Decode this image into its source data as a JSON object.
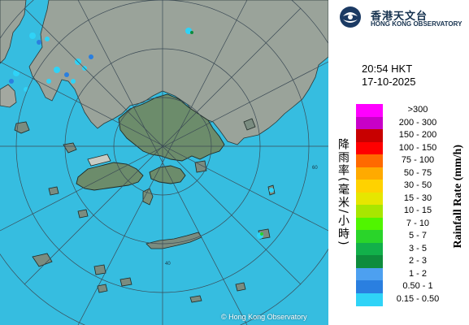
{
  "header": {
    "org_zh": "香港天文台",
    "org_en": "HONG KONG OBSERVATORY"
  },
  "timestamp": {
    "time": "20:54 HKT",
    "date": "17-10-2025"
  },
  "map": {
    "copyright": "© Hong Kong Observatory",
    "range_ring_labels": [
      "20",
      "40",
      "60"
    ],
    "colors": {
      "sea": "#36bde0",
      "land": "#9aa39a",
      "hk_land": "#6c8c6b",
      "ring": "#3b4a55",
      "echo_light": "#2fd3f7",
      "echo_medium": "#2a7fe0"
    }
  },
  "legend": {
    "ylabel_zh": "降雨率(毫米/小時)",
    "ylabel_en": "Rainfall Rate (mm/h)",
    "items": [
      {
        "range": ">300",
        "color": "#ff00ff"
      },
      {
        "range": "200 - 300",
        "color": "#c800c8"
      },
      {
        "range": "150 - 200",
        "color": "#c80000"
      },
      {
        "range": "100 - 150",
        "color": "#ff0000"
      },
      {
        "range": "75 - 100",
        "color": "#ff6a00"
      },
      {
        "range": "50 - 75",
        "color": "#ffaa00"
      },
      {
        "range": "30 - 50",
        "color": "#ffd200"
      },
      {
        "range": "15 - 30",
        "color": "#e6e600"
      },
      {
        "range": "10 - 15",
        "color": "#a8e600"
      },
      {
        "range": "7 - 10",
        "color": "#50f500"
      },
      {
        "range": "5 - 7",
        "color": "#2ad42a"
      },
      {
        "range": "3 - 5",
        "color": "#12b04a"
      },
      {
        "range": "2 - 3",
        "color": "#0e8c3c"
      },
      {
        "range": "1 - 2",
        "color": "#4da0f0"
      },
      {
        "range": "0.50 - 1",
        "color": "#2a7fe0"
      },
      {
        "range": "0.15 - 0.50",
        "color": "#2fd3f7"
      }
    ]
  }
}
